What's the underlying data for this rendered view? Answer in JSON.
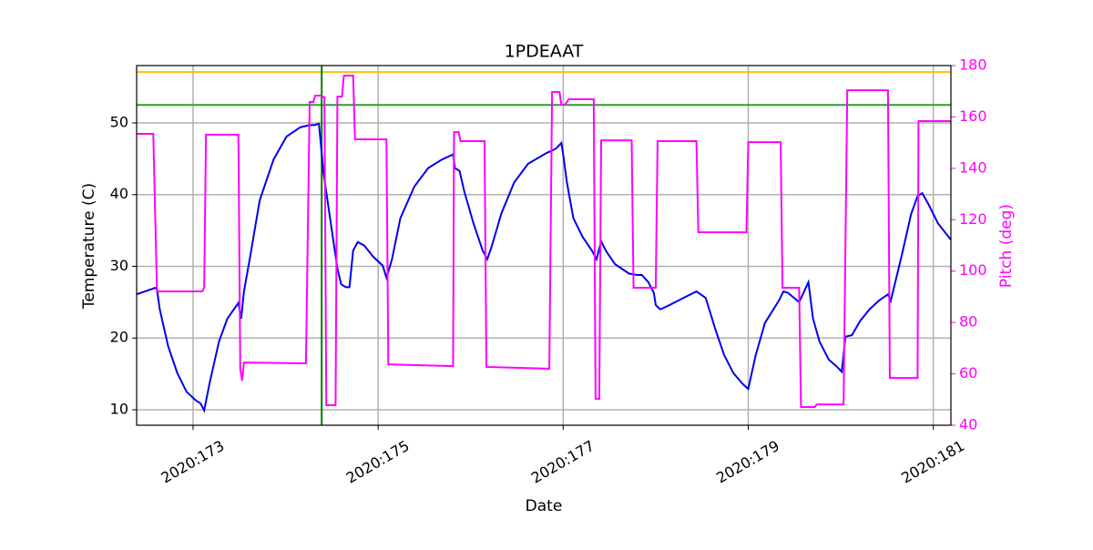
{
  "chart_data": {
    "type": "line",
    "title": "1PDEAAT",
    "x_label": "Date",
    "y_label": "Temperature (C)",
    "y2_label": "Pitch (deg)",
    "xlim": [
      172.39,
      181.19
    ],
    "ylim": [
      7.84,
      58.0
    ],
    "y2lim": [
      40,
      180
    ],
    "xticks": [
      {
        "value": 173,
        "label": "2020:173"
      },
      {
        "value": 175,
        "label": "2020:175"
      },
      {
        "value": 177,
        "label": "2020:177"
      },
      {
        "value": 179,
        "label": "2020:179"
      },
      {
        "value": 181,
        "label": "2020:181"
      }
    ],
    "yticks": [
      10,
      20,
      30,
      40,
      50
    ],
    "y2ticks": [
      40,
      60,
      80,
      100,
      120,
      140,
      160,
      180
    ],
    "grid": true,
    "y2_color": "#ff00ff",
    "hlines": [
      {
        "value": 57.1,
        "color": "#ffbf00"
      },
      {
        "value": 52.5,
        "color": "#2ca02c"
      }
    ],
    "vlines": [
      {
        "value": 174.39,
        "color": "#008000"
      }
    ],
    "series": [
      {
        "color": "#0000ee",
        "axis": "y",
        "x": [
          172.39,
          172.59,
          172.61,
          172.64,
          172.73,
          172.83,
          172.93,
          173.03,
          173.08,
          173.12,
          173.18,
          173.28,
          173.37,
          173.49,
          173.52,
          173.55,
          173.62,
          173.72,
          173.87,
          174.01,
          174.16,
          174.26,
          174.31,
          174.36,
          174.41,
          174.51,
          174.56,
          174.6,
          174.65,
          174.69,
          174.73,
          174.78,
          174.85,
          174.95,
          175.05,
          175.09,
          175.15,
          175.24,
          175.39,
          175.54,
          175.69,
          175.81,
          175.83,
          175.88,
          175.93,
          176.03,
          176.13,
          176.18,
          176.23,
          176.33,
          176.47,
          176.62,
          176.82,
          176.92,
          176.98,
          177.0,
          177.04,
          177.11,
          177.21,
          177.31,
          177.36,
          177.41,
          177.46,
          177.56,
          177.71,
          177.8,
          177.85,
          177.92,
          177.98,
          178.0,
          178.05,
          178.15,
          178.3,
          178.44,
          178.54,
          178.64,
          178.74,
          178.84,
          178.94,
          179.0,
          179.08,
          179.18,
          179.33,
          179.38,
          179.43,
          179.55,
          179.65,
          179.7,
          179.77,
          179.87,
          179.95,
          180.01,
          180.05,
          180.12,
          180.21,
          180.31,
          180.41,
          180.51,
          180.54,
          180.66,
          180.76,
          180.83,
          180.88,
          180.95,
          181.05,
          181.19
        ],
        "values": [
          26.1,
          27.0,
          26.8,
          24.0,
          18.9,
          15.1,
          12.5,
          11.3,
          10.9,
          9.9,
          13.8,
          19.5,
          22.7,
          24.9,
          22.7,
          26.5,
          31.6,
          39.2,
          44.9,
          48.1,
          49.4,
          49.7,
          49.7,
          49.9,
          43.0,
          34.1,
          29.7,
          27.5,
          27.1,
          27.1,
          32.2,
          33.4,
          32.9,
          31.3,
          30.1,
          28.4,
          31.0,
          36.7,
          41.1,
          43.7,
          44.9,
          45.6,
          43.7,
          43.3,
          40.5,
          36.0,
          32.2,
          31.0,
          32.9,
          37.3,
          41.7,
          44.3,
          45.8,
          46.4,
          47.2,
          45.6,
          41.7,
          36.7,
          34.1,
          32.2,
          31.0,
          33.5,
          32.2,
          30.3,
          29.0,
          28.8,
          28.8,
          27.8,
          26.3,
          24.6,
          24.0,
          24.6,
          25.6,
          26.5,
          25.6,
          21.4,
          17.6,
          15.1,
          13.6,
          12.9,
          17.6,
          22.1,
          25.2,
          26.5,
          26.3,
          25.0,
          27.8,
          22.7,
          19.5,
          17.0,
          16.1,
          15.3,
          20.2,
          20.4,
          22.4,
          24.0,
          25.2,
          26.1,
          25.2,
          31.6,
          37.3,
          39.8,
          40.2,
          38.6,
          36.0,
          33.7
        ]
      },
      {
        "color": "#ff00ff",
        "axis": "y2",
        "x": [
          172.39,
          172.57,
          172.61,
          173.1,
          173.12,
          173.14,
          173.49,
          173.51,
          173.53,
          173.55,
          174.22,
          174.26,
          174.3,
          174.32,
          174.38,
          174.42,
          174.44,
          174.54,
          174.56,
          174.61,
          174.63,
          174.73,
          174.75,
          175.09,
          175.11,
          175.81,
          175.82,
          175.87,
          175.89,
          176.15,
          176.17,
          176.85,
          176.88,
          176.96,
          176.98,
          177.02,
          177.06,
          177.33,
          177.35,
          177.39,
          177.41,
          177.74,
          177.76,
          178.0,
          178.02,
          178.44,
          178.46,
          178.98,
          179.0,
          179.35,
          179.37,
          179.55,
          179.57,
          179.72,
          179.74,
          180.03,
          180.07,
          180.51,
          180.53,
          180.83,
          180.84,
          181.19
        ],
        "values": [
          153.4,
          153.4,
          92.1,
          92.1,
          93.5,
          153.1,
          153.1,
          62.0,
          57.3,
          64.4,
          64.1,
          165.8,
          165.8,
          168.3,
          168.3,
          167.6,
          47.8,
          47.8,
          167.9,
          167.9,
          176.1,
          176.1,
          151.3,
          151.3,
          63.7,
          63.0,
          154.1,
          154.1,
          150.6,
          150.6,
          62.7,
          62.0,
          169.7,
          169.7,
          164.8,
          164.8,
          166.9,
          166.9,
          50.3,
          50.3,
          150.9,
          150.9,
          93.5,
          93.5,
          150.6,
          150.6,
          115.1,
          115.1,
          150.2,
          150.2,
          93.5,
          93.5,
          47.1,
          47.1,
          48.1,
          48.1,
          170.4,
          170.4,
          58.4,
          58.4,
          158.4,
          158.4
        ]
      }
    ]
  }
}
